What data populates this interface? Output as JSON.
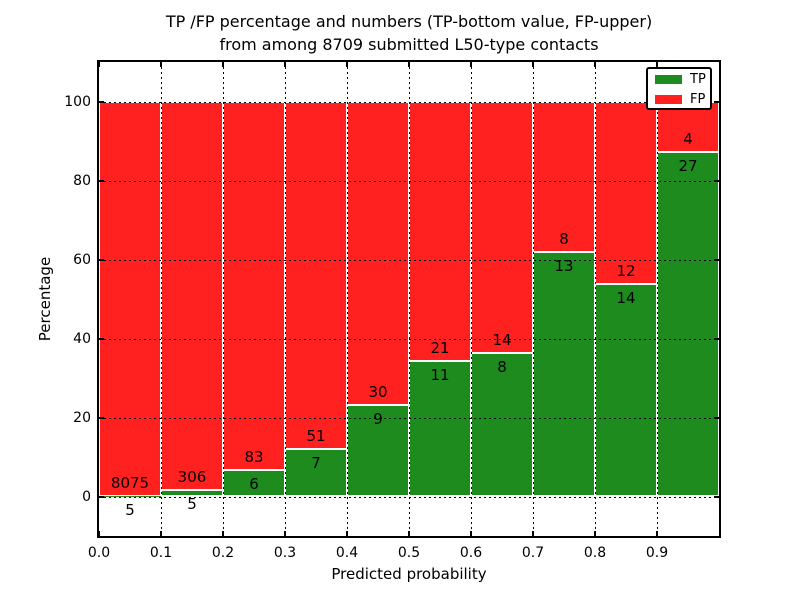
{
  "title": {
    "line1": "TP /FP percentage and numbers (TP-bottom value, FP-upper)",
    "line2": "from among 8709 submitted L50-type contacts"
  },
  "axes": {
    "xlabel": "Predicted probability",
    "ylabel": "Percentage",
    "x_tick_labels": [
      "0.0",
      "0.1",
      "0.2",
      "0.3",
      "0.4",
      "0.5",
      "0.6",
      "0.7",
      "0.8",
      "0.9"
    ],
    "y_tick_labels": [
      "0",
      "20",
      "40",
      "60",
      "80",
      "100"
    ],
    "y_tick_values": [
      0,
      20,
      40,
      60,
      80,
      100
    ],
    "xlim": [
      0.0,
      1.0
    ],
    "ylim": [
      -10,
      110
    ],
    "grid_style": "dotted"
  },
  "legend": {
    "position": "upper-right",
    "items": [
      {
        "label": "TP",
        "color": "#1e8b1e"
      },
      {
        "label": "FP",
        "color": "#ff2020"
      }
    ]
  },
  "chart_data": {
    "type": "bar",
    "stacked": true,
    "orientation": "vertical",
    "title": "TP /FP percentage and numbers (TP-bottom value, FP-upper) from among 8709 submitted L50-type contacts",
    "xlabel": "Predicted probability",
    "ylabel": "Percentage",
    "total_contacts": 8709,
    "bin_edges": [
      0.0,
      0.1,
      0.2,
      0.3,
      0.4,
      0.5,
      0.6,
      0.7,
      0.8,
      0.9,
      1.0
    ],
    "categories": [
      "0.0-0.1",
      "0.1-0.2",
      "0.2-0.3",
      "0.3-0.4",
      "0.4-0.5",
      "0.5-0.6",
      "0.6-0.7",
      "0.7-0.8",
      "0.8-0.9",
      "0.9-1.0"
    ],
    "series": [
      {
        "name": "TP",
        "color": "#1e8b1e",
        "counts": [
          5,
          5,
          6,
          7,
          9,
          11,
          8,
          13,
          14,
          27
        ],
        "percentages": [
          0.06,
          1.61,
          6.74,
          12.07,
          23.08,
          34.38,
          36.36,
          61.9,
          53.85,
          87.1
        ]
      },
      {
        "name": "FP",
        "color": "#ff2020",
        "counts": [
          8075,
          306,
          83,
          51,
          30,
          21,
          14,
          8,
          12,
          4
        ],
        "percentages": [
          99.94,
          98.39,
          93.26,
          87.93,
          76.92,
          65.62,
          63.64,
          38.1,
          46.15,
          12.9
        ]
      }
    ],
    "bar_label_rule": "FP count printed just above TP/FP boundary, TP count just below boundary",
    "bar_edge_color": "#ffffff",
    "ylim": [
      -10,
      110
    ],
    "grid": true,
    "legend_position": "upper-right"
  },
  "colors": {
    "tp": "#1e8b1e",
    "fp": "#ff2020",
    "background": "#ffffff",
    "spine": "#000000",
    "grid": "#000000",
    "bar_edge": "#ffffff",
    "text": "#000000"
  }
}
